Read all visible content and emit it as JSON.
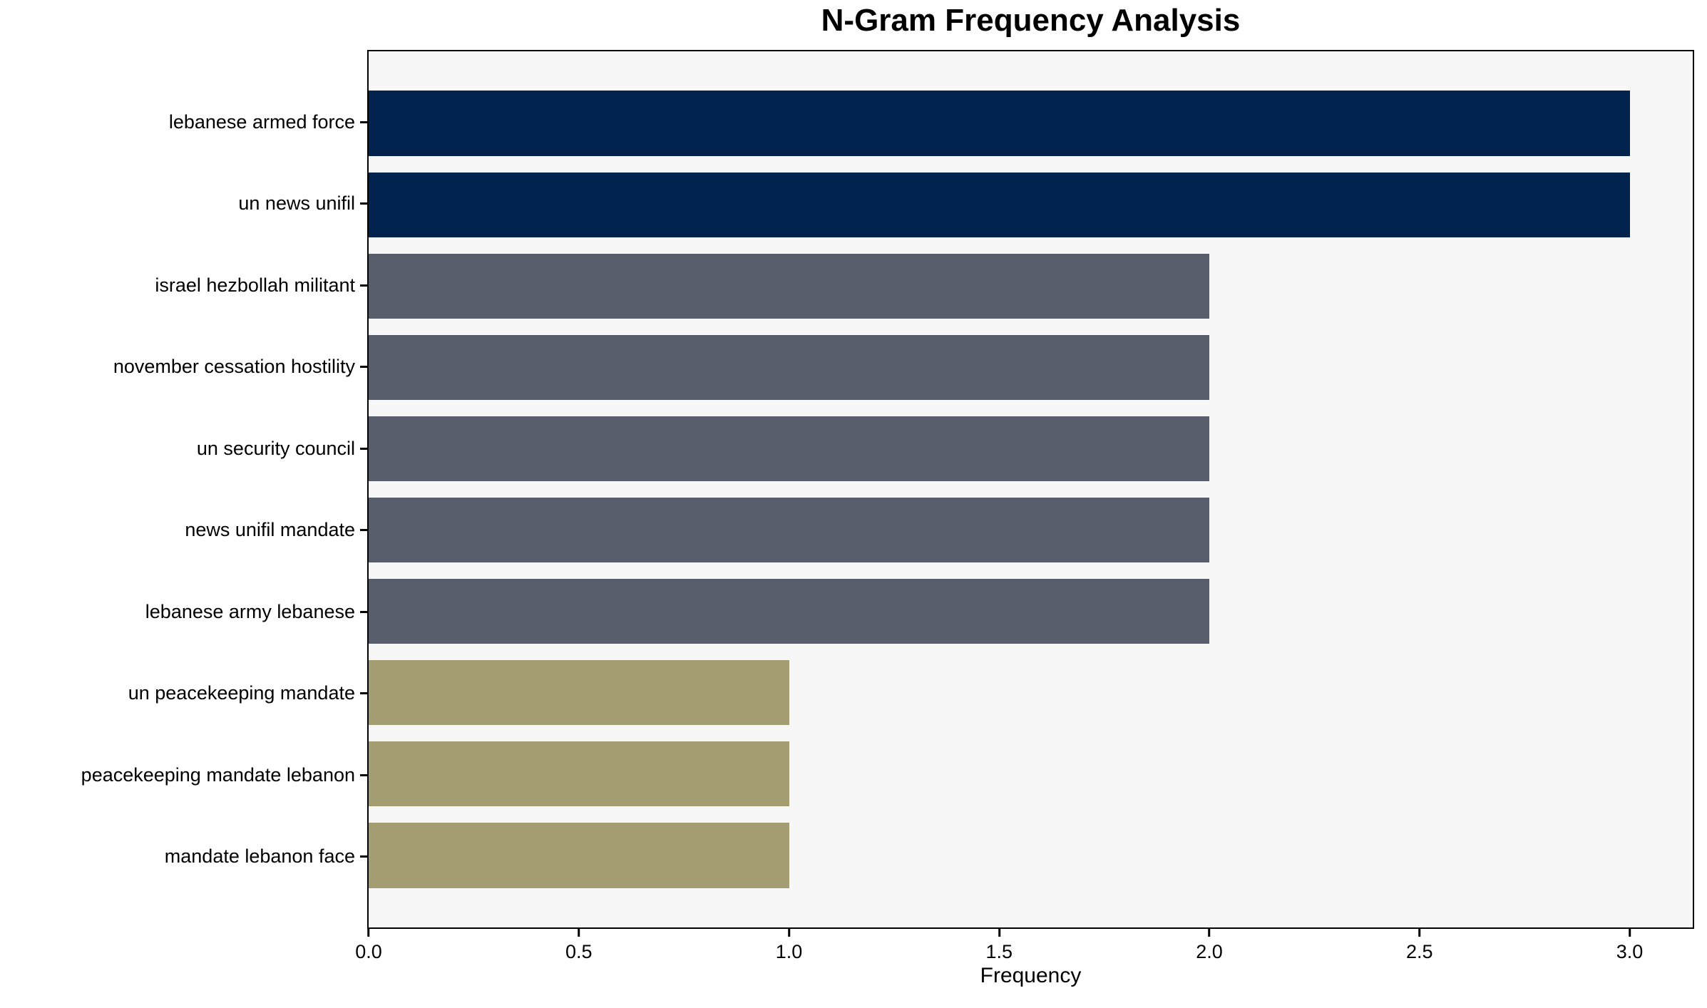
{
  "figure": {
    "background": "#ffffff",
    "plot_background": "#f7f7f7",
    "axis_color": "#000000",
    "text_color": "#000000"
  },
  "chart_data": {
    "type": "bar",
    "orientation": "horizontal",
    "title": "N-Gram Frequency Analysis",
    "xlabel": "Frequency",
    "ylabel": "",
    "categories": [
      "lebanese armed force",
      "un news unifil",
      "israel hezbollah militant",
      "november cessation hostility",
      "un security council",
      "news unifil mandate",
      "lebanese army lebanese",
      "un peacekeeping mandate",
      "peacekeeping mandate lebanon",
      "mandate lebanon face"
    ],
    "values": [
      3,
      3,
      2,
      2,
      2,
      2,
      2,
      1,
      1,
      1
    ],
    "bar_colors": [
      "#02234e",
      "#02234e",
      "#575d6b",
      "#575d6b",
      "#575d6b",
      "#575d6b",
      "#575d6b",
      "#a49d72",
      "#a49d72",
      "#a49d72"
    ],
    "color_by_value": {
      "3": "#02234e",
      "2": "#575d6b",
      "1": "#a49d72"
    },
    "xlim": [
      0,
      3.15
    ],
    "xticks": [
      0,
      0.5,
      1.0,
      1.5,
      2.0,
      2.5,
      3.0
    ],
    "xtick_labels": [
      "0.0",
      "0.5",
      "1.0",
      "1.5",
      "2.0",
      "2.5",
      "3.0"
    ],
    "grid": false,
    "legend": "none",
    "bar_height_fraction": 0.8
  }
}
